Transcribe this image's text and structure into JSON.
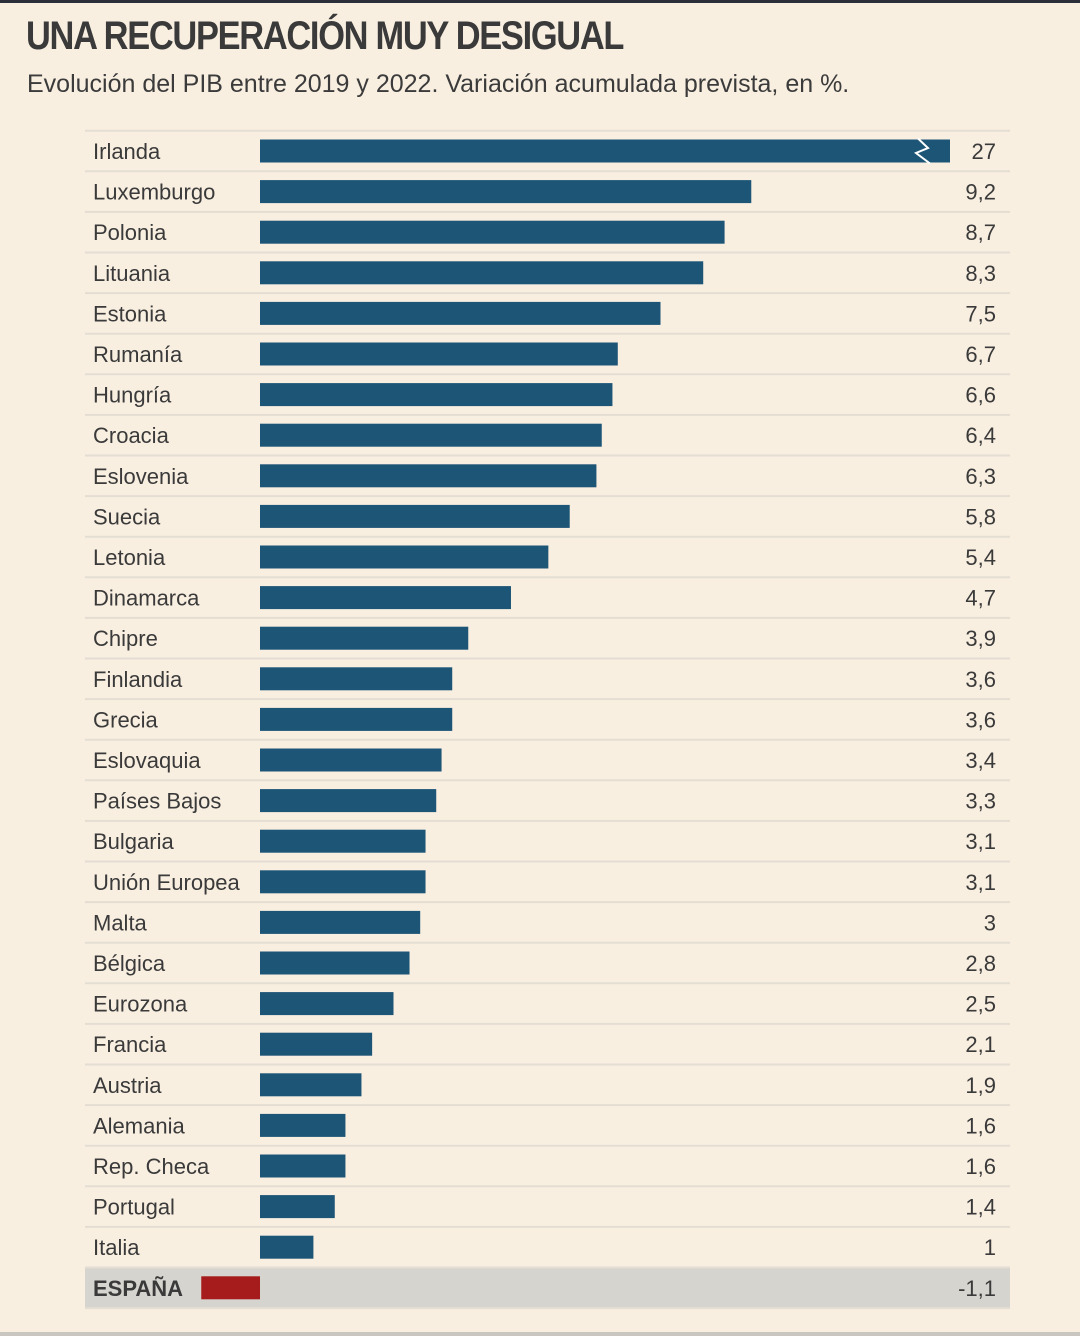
{
  "header": {
    "title": "UNA RECUPERACIÓN MUY DESIGUAL",
    "subtitle": "Evolución del PIB entre 2019 y 2022. Variación acumulada prevista, en %."
  },
  "colors": {
    "background": "#f9efe1",
    "bar": "#1d5577",
    "negative_bar": "#a61b1b",
    "highlight_row": "#d6d4cf",
    "grid": "#e4ddd2"
  },
  "chart_data": {
    "type": "bar",
    "orientation": "horizontal",
    "title": "UNA RECUPERACIÓN MUY DESIGUAL",
    "subtitle": "Evolución del PIB entre 2019 y 2022. Variación acumulada prevista, en %.",
    "broken_axis_for": "Irlanda",
    "highlight": "ESPAÑA",
    "categories": [
      "Irlanda",
      "Luxemburgo",
      "Polonia",
      "Lituania",
      "Estonia",
      "Rumanía",
      "Hungría",
      "Croacia",
      "Eslovenia",
      "Suecia",
      "Letonia",
      "Dinamarca",
      "Chipre",
      "Finlandia",
      "Grecia",
      "Eslovaquia",
      "Países Bajos",
      "Bulgaria",
      "Unión Europea",
      "Malta",
      "Bélgica",
      "Eurozona",
      "Francia",
      "Austria",
      "Alemania",
      "Rep. Checa",
      "Portugal",
      "Italia",
      "ESPAÑA"
    ],
    "values": [
      27,
      9.2,
      8.7,
      8.3,
      7.5,
      6.7,
      6.6,
      6.4,
      6.3,
      5.8,
      5.4,
      4.7,
      3.9,
      3.6,
      3.6,
      3.4,
      3.3,
      3.1,
      3.1,
      3,
      2.8,
      2.5,
      2.1,
      1.9,
      1.6,
      1.6,
      1.4,
      1,
      -1.1
    ],
    "value_labels": [
      "27",
      "9,2",
      "8,7",
      "8,3",
      "7,5",
      "6,7",
      "6,6",
      "6,4",
      "6,3",
      "5,8",
      "5,4",
      "4,7",
      "3,9",
      "3,6",
      "3,6",
      "3,4",
      "3,3",
      "3,1",
      "3,1",
      "3",
      "2,8",
      "2,5",
      "2,1",
      "1,9",
      "1,6",
      "1,6",
      "1,4",
      "1",
      "-1,1"
    ]
  }
}
